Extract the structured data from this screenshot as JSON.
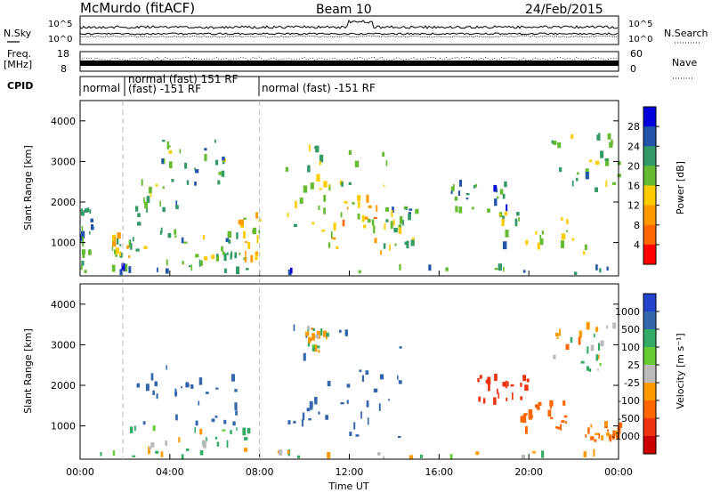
{
  "header": {
    "station": "McMurdo (fitACF)",
    "beam": "Beam 10",
    "date": "24/Feb/2015"
  },
  "top_panels": {
    "nsky_label": "N.Sky",
    "nsky_ticks": [
      "10^5",
      "10^0"
    ],
    "nsearch_label": "N.Search",
    "nsearch_ticks": [
      "10^5",
      "10^0"
    ],
    "freq_label": "Freq.",
    "freq_unit": "[MHz]",
    "freq_ticks": [
      "18",
      "8"
    ],
    "nave_label": "Nave",
    "nave_ticks": [
      "60",
      "0"
    ],
    "cpid_label": "CPID",
    "cpid_segments": [
      {
        "label": "normal",
        "start_h": 0,
        "end_h": 1.9
      },
      {
        "label": "normal (fast) 151 RF",
        "start_h": 1.9,
        "end_h": 8.0
      },
      {
        "label": "(fast) -151 RF",
        "start_h": 1.9,
        "end_h": 8.0
      },
      {
        "label": "normal (fast) -151 RF",
        "start_h": 8.0,
        "end_h": 24
      }
    ]
  },
  "power_colorbar": {
    "label": "Power [dB]",
    "ticks": [
      "28",
      "24",
      "20",
      "16",
      "12",
      "8",
      "4"
    ],
    "colors": [
      "#ff0000",
      "#ff6600",
      "#ff9900",
      "#ffcc00",
      "#66bb33",
      "#339966",
      "#2255aa",
      "#0000dd"
    ]
  },
  "velocity_colorbar": {
    "label": "Velocity [m s⁻¹]",
    "ticks": [
      "1000",
      "500",
      "100",
      "25",
      "-25",
      "-100",
      "-500",
      "-1000"
    ],
    "colors": [
      "#2244cc",
      "#3366aa",
      "#33aa66",
      "#66cc33",
      "#bbbbbb",
      "#ff9900",
      "#ff6600",
      "#ee3311",
      "#cc0000"
    ]
  },
  "chart_data": [
    {
      "type": "heatmap",
      "name": "power",
      "ylabel": "Slant Range [km]",
      "yticks": [
        "4000",
        "3000",
        "2000",
        "1000"
      ],
      "ylim": [
        180,
        4500
      ],
      "xlim": [
        0,
        24
      ],
      "patches": [
        {
          "t0": 0.0,
          "t1": 0.5,
          "r0": 200,
          "r1": 1800,
          "level": 0.4
        },
        {
          "t0": 1.4,
          "t1": 2.3,
          "r0": 250,
          "r1": 1100,
          "level": 0.7
        },
        {
          "t0": 2.3,
          "t1": 4.5,
          "r0": 400,
          "r1": 2400,
          "level": 0.5
        },
        {
          "t0": 4.5,
          "t1": 7.0,
          "r0": 300,
          "r1": 1200,
          "level": 0.55
        },
        {
          "t0": 7.0,
          "t1": 8.0,
          "r0": 500,
          "r1": 1600,
          "level": 0.8
        },
        {
          "t0": 3.5,
          "t1": 6.5,
          "r0": 2400,
          "r1": 3500,
          "level": 0.45
        },
        {
          "t0": 9.0,
          "t1": 14.5,
          "r0": 1200,
          "r1": 3500,
          "level": 0.6
        },
        {
          "t0": 10.5,
          "t1": 13.5,
          "r0": 700,
          "r1": 2200,
          "level": 0.85
        },
        {
          "t0": 13.5,
          "t1": 15.0,
          "r0": 800,
          "r1": 1800,
          "level": 0.5
        },
        {
          "t0": 16.5,
          "t1": 19.0,
          "r0": 1700,
          "r1": 2400,
          "level": 0.35
        },
        {
          "t0": 18.5,
          "t1": 22.5,
          "r0": 700,
          "r1": 1700,
          "level": 0.55
        },
        {
          "t0": 21.0,
          "t1": 24.0,
          "r0": 2200,
          "r1": 3600,
          "level": 0.55
        },
        {
          "t0": 0.0,
          "t1": 24.0,
          "r0": 180,
          "r1": 330,
          "level": 0.3
        }
      ]
    },
    {
      "type": "heatmap",
      "name": "velocity",
      "ylabel": "Slant Range [km]",
      "yticks": [
        "4000",
        "3000",
        "2000",
        "1000"
      ],
      "ylim": [
        180,
        4500
      ],
      "xlim": [
        0,
        24
      ],
      "xticks": [
        "00:00",
        "04:00",
        "08:00",
        "12:00",
        "16:00",
        "20:00",
        "00:00"
      ],
      "xlabel": "Time UT",
      "patches": [
        {
          "t0": 1.5,
          "t1": 7.5,
          "r0": 300,
          "r1": 900,
          "vel": 100
        },
        {
          "t0": 2.5,
          "t1": 7.0,
          "r0": 1000,
          "r1": 2500,
          "vel": 500
        },
        {
          "t0": 9.0,
          "t1": 14.5,
          "r0": 700,
          "r1": 3500,
          "vel": 500
        },
        {
          "t0": 10.0,
          "t1": 11.0,
          "r0": 2800,
          "r1": 3400,
          "vel": 0
        },
        {
          "t0": 17.5,
          "t1": 20.0,
          "r0": 1500,
          "r1": 2200,
          "vel": -700
        },
        {
          "t0": 19.5,
          "t1": 22.0,
          "r0": 700,
          "r1": 1500,
          "vel": -300
        },
        {
          "t0": 22.5,
          "t1": 24.0,
          "r0": 600,
          "r1": 1000,
          "vel": -200
        },
        {
          "t0": 21.0,
          "t1": 24.0,
          "r0": 2300,
          "r1": 3400,
          "vel": 0
        },
        {
          "t0": 0.0,
          "t1": 24.0,
          "r0": 180,
          "r1": 330,
          "vel": 50
        }
      ]
    }
  ]
}
